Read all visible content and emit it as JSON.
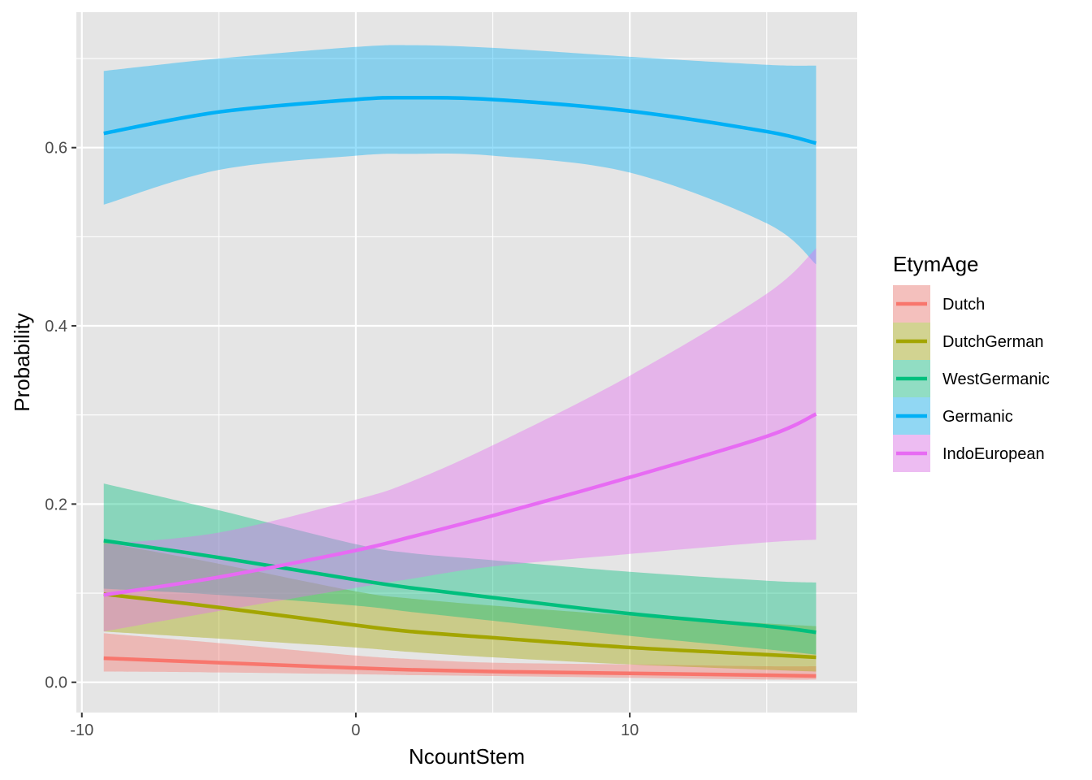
{
  "chart_data": {
    "type": "line",
    "xlabel": "NcountStem",
    "ylabel": "Probability",
    "xlim": [
      -10.2,
      18.3
    ],
    "ylim": [
      -0.034,
      0.752
    ],
    "x_ticks": [
      -10,
      0,
      10
    ],
    "x_tick_labels": [
      "-10",
      "0",
      "10"
    ],
    "y_ticks": [
      0.0,
      0.2,
      0.4,
      0.6
    ],
    "y_tick_labels": [
      "0.0",
      "0.2",
      "0.4",
      "0.6"
    ],
    "grid": true,
    "legend": {
      "title": "EtymAge",
      "placement": "right"
    },
    "x": [
      -9.2,
      -5,
      0,
      2,
      5,
      10,
      15,
      16.8
    ],
    "series": [
      {
        "name": "Dutch",
        "color": "#F8766D",
        "values": [
          0.027,
          0.022,
          0.016,
          0.014,
          0.012,
          0.01,
          0.008,
          0.007
        ],
        "lower": [
          0.012,
          0.011,
          0.009,
          0.008,
          0.007,
          0.005,
          0.003,
          0.003
        ],
        "upper": [
          0.055,
          0.044,
          0.03,
          0.026,
          0.022,
          0.02,
          0.018,
          0.018
        ]
      },
      {
        "name": "DutchGerman",
        "color": "#A3A500",
        "values": [
          0.099,
          0.084,
          0.064,
          0.057,
          0.05,
          0.039,
          0.031,
          0.028
        ],
        "lower": [
          0.057,
          0.049,
          0.039,
          0.034,
          0.028,
          0.02,
          0.014,
          0.012
        ],
        "upper": [
          0.157,
          0.133,
          0.102,
          0.094,
          0.086,
          0.075,
          0.066,
          0.063
        ]
      },
      {
        "name": "WestGermanic",
        "color": "#00BF7D",
        "values": [
          0.159,
          0.14,
          0.115,
          0.106,
          0.095,
          0.077,
          0.063,
          0.056
        ],
        "lower": [
          0.105,
          0.098,
          0.086,
          0.079,
          0.069,
          0.052,
          0.037,
          0.031
        ],
        "upper": [
          0.223,
          0.193,
          0.155,
          0.145,
          0.137,
          0.124,
          0.114,
          0.112
        ]
      },
      {
        "name": "Germanic",
        "color": "#00B0F6",
        "values": [
          0.616,
          0.64,
          0.654,
          0.656,
          0.654,
          0.641,
          0.618,
          0.605
        ],
        "lower": [
          0.536,
          0.575,
          0.591,
          0.593,
          0.591,
          0.572,
          0.515,
          0.469
        ],
        "upper": [
          0.686,
          0.7,
          0.713,
          0.715,
          0.712,
          0.702,
          0.693,
          0.692
        ]
      },
      {
        "name": "IndoEuropean",
        "color": "#E76BF3",
        "values": [
          0.098,
          0.118,
          0.148,
          0.163,
          0.187,
          0.23,
          0.276,
          0.301
        ],
        "lower": [
          0.057,
          0.08,
          0.106,
          0.116,
          0.13,
          0.144,
          0.157,
          0.16
        ],
        "upper": [
          0.155,
          0.168,
          0.205,
          0.225,
          0.266,
          0.344,
          0.436,
          0.487
        ]
      }
    ]
  }
}
